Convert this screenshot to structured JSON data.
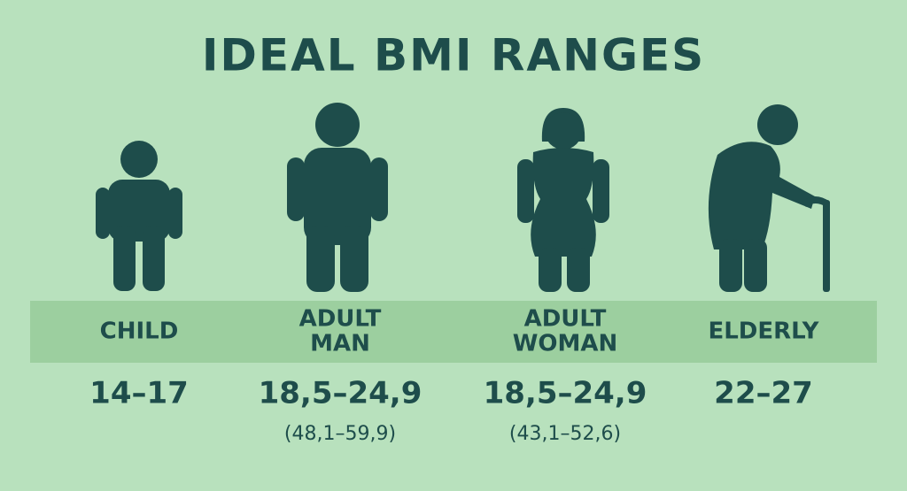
{
  "title": "IDEAL BMI RANGES",
  "groups": [
    {
      "label": [
        "CHILD"
      ],
      "range": "14–17"
    },
    {
      "label": [
        "ADULT",
        "MAN"
      ],
      "range": "18,5–24,9",
      "subrange": "(48,1–59,9)"
    },
    {
      "label": [
        "ADULT",
        "WOMAN"
      ],
      "range": "18,5–24,9",
      "subrange": "(43,1–52,6)"
    },
    {
      "label": [
        "ELDERLY"
      ],
      "range": "22–27"
    }
  ]
}
